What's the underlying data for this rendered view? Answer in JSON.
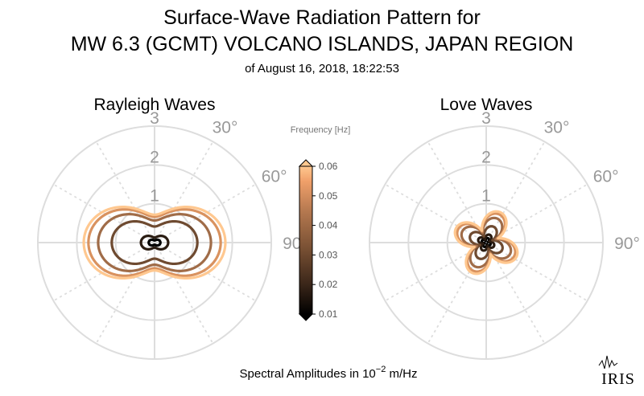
{
  "title_line1": "Surface-Wave Radiation Pattern for",
  "title_line2": "MW 6.3 (GCMT) VOLCANO ISLANDS, JAPAN REGION",
  "subtitle": "of August 16, 2018, 18:22:53",
  "xlabel_prefix": "Spectral Amplitudes in 10",
  "xlabel_exponent": "−2",
  "xlabel_suffix": " m/Hz",
  "logo_text": "IRIS",
  "colorbar": {
    "title": "Frequency [Hz]",
    "ticks": [
      "0.01",
      "0.02",
      "0.03",
      "0.04",
      "0.05",
      "0.06"
    ],
    "colormap": [
      "#000000",
      "#3a2619",
      "#7a5134",
      "#b67950",
      "#f0a06a",
      "#ffc890"
    ]
  },
  "chart_data": [
    {
      "type": "polar",
      "title": "Rayleigh Waves",
      "radial_ticks": [
        "1",
        "2",
        "3"
      ],
      "angle_labels": [
        "30°",
        "60°",
        "90°"
      ],
      "rlim": [
        0,
        3
      ],
      "grid": true,
      "pattern": "two-lobe (cos 2θ) pattern, lobes toward 90° and 270°",
      "series": [
        {
          "frequency": 0.01,
          "max_amplitude": 0.15,
          "waist": 0.06,
          "color": "#000000"
        },
        {
          "frequency": 0.02,
          "max_amplitude": 0.35,
          "waist": 0.14,
          "color": "#2a1c12"
        },
        {
          "frequency": 0.03,
          "max_amplitude": 1.1,
          "waist": 0.45,
          "color": "#6e4a30"
        },
        {
          "frequency": 0.04,
          "max_amplitude": 1.45,
          "waist": 0.62,
          "color": "#a06c48"
        },
        {
          "frequency": 0.05,
          "max_amplitude": 1.7,
          "waist": 0.72,
          "color": "#d9925f"
        },
        {
          "frequency": 0.06,
          "max_amplitude": 1.82,
          "waist": 0.78,
          "color": "#ffc890"
        }
      ]
    },
    {
      "type": "polar",
      "title": "Love Waves",
      "radial_ticks": [
        "1",
        "2",
        "3"
      ],
      "angle_labels": [
        "30°",
        "60°",
        "90°"
      ],
      "rlim": [
        0,
        3
      ],
      "grid": true,
      "pattern": "four-lobe (sin 2θ) pattern",
      "series": [
        {
          "frequency": 0.01,
          "max_amplitude": 0.12,
          "color": "#000000"
        },
        {
          "frequency": 0.02,
          "max_amplitude": 0.22,
          "color": "#2a1c12"
        },
        {
          "frequency": 0.03,
          "max_amplitude": 0.45,
          "color": "#6e4a30"
        },
        {
          "frequency": 0.04,
          "max_amplitude": 0.68,
          "color": "#a06c48"
        },
        {
          "frequency": 0.05,
          "max_amplitude": 0.8,
          "color": "#d9925f"
        },
        {
          "frequency": 0.06,
          "max_amplitude": 0.86,
          "color": "#ffc890"
        }
      ]
    }
  ]
}
